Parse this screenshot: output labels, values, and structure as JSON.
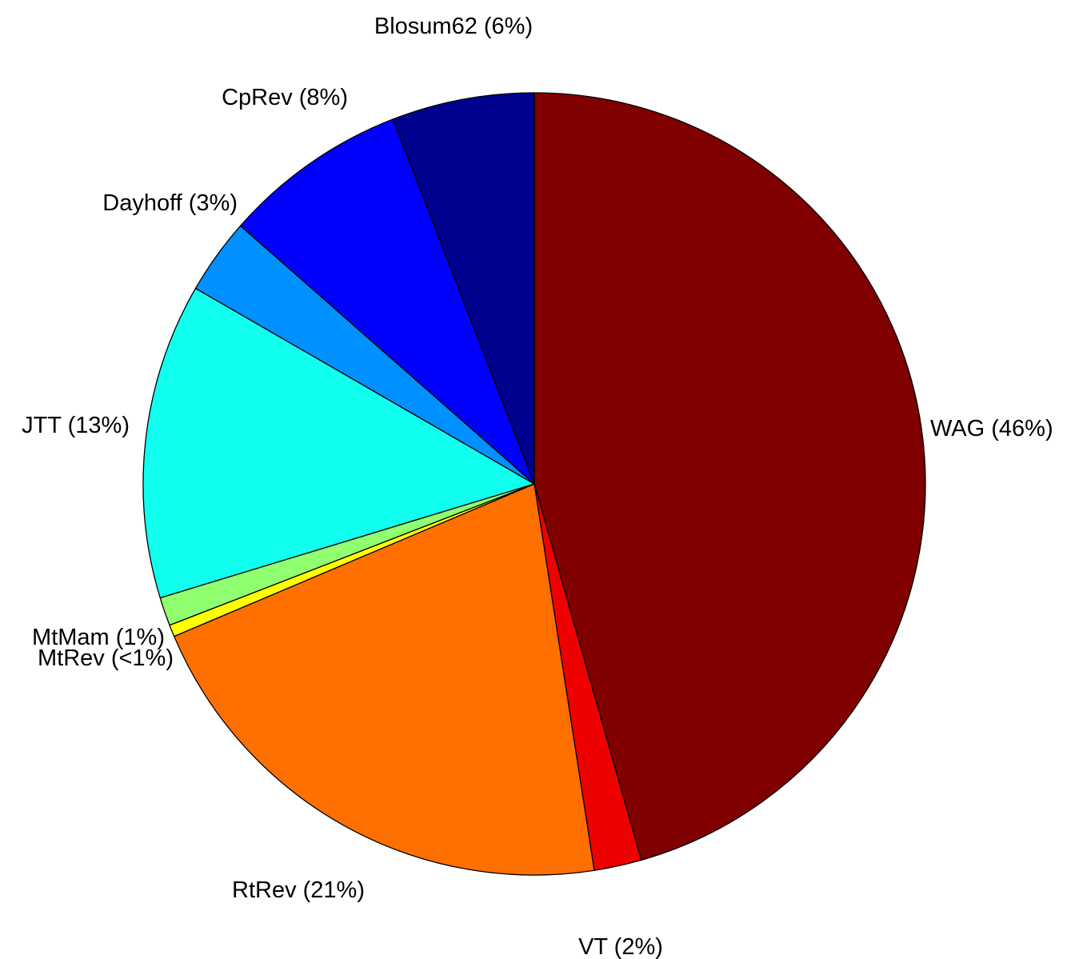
{
  "chart_data": {
    "type": "pie",
    "title": "",
    "slices": [
      {
        "name": "WAG",
        "label": "WAG (46%)",
        "value": 46.5,
        "color": "#800000"
      },
      {
        "name": "VT",
        "label": "VT (2%)",
        "value": 2.0,
        "color": "#ee0000"
      },
      {
        "name": "RtRev",
        "label": "RtRev (21%)",
        "value": 21.5,
        "color": "#ff7000"
      },
      {
        "name": "MtRev",
        "label": "MtRev (<1%)",
        "value": 0.5,
        "color": "#ffff00"
      },
      {
        "name": "MtMam",
        "label": "MtMam (1%)",
        "value": 1.2,
        "color": "#90ff70"
      },
      {
        "name": "JTT",
        "label": "JTT (13%)",
        "value": 13.3,
        "color": "#10ffee"
      },
      {
        "name": "Dayhoff",
        "label": "Dayhoff (3%)",
        "value": 3.2,
        "color": "#0090ff"
      },
      {
        "name": "CpRev",
        "label": "CpRev (8%)",
        "value": 7.8,
        "color": "#0000ff"
      },
      {
        "name": "Blosum62",
        "label": "Blosum62 (6%)",
        "value": 6.0,
        "color": "#00008f"
      }
    ],
    "start_angle": "top",
    "direction": "clockwise",
    "legend": "none",
    "labels": "outside"
  }
}
